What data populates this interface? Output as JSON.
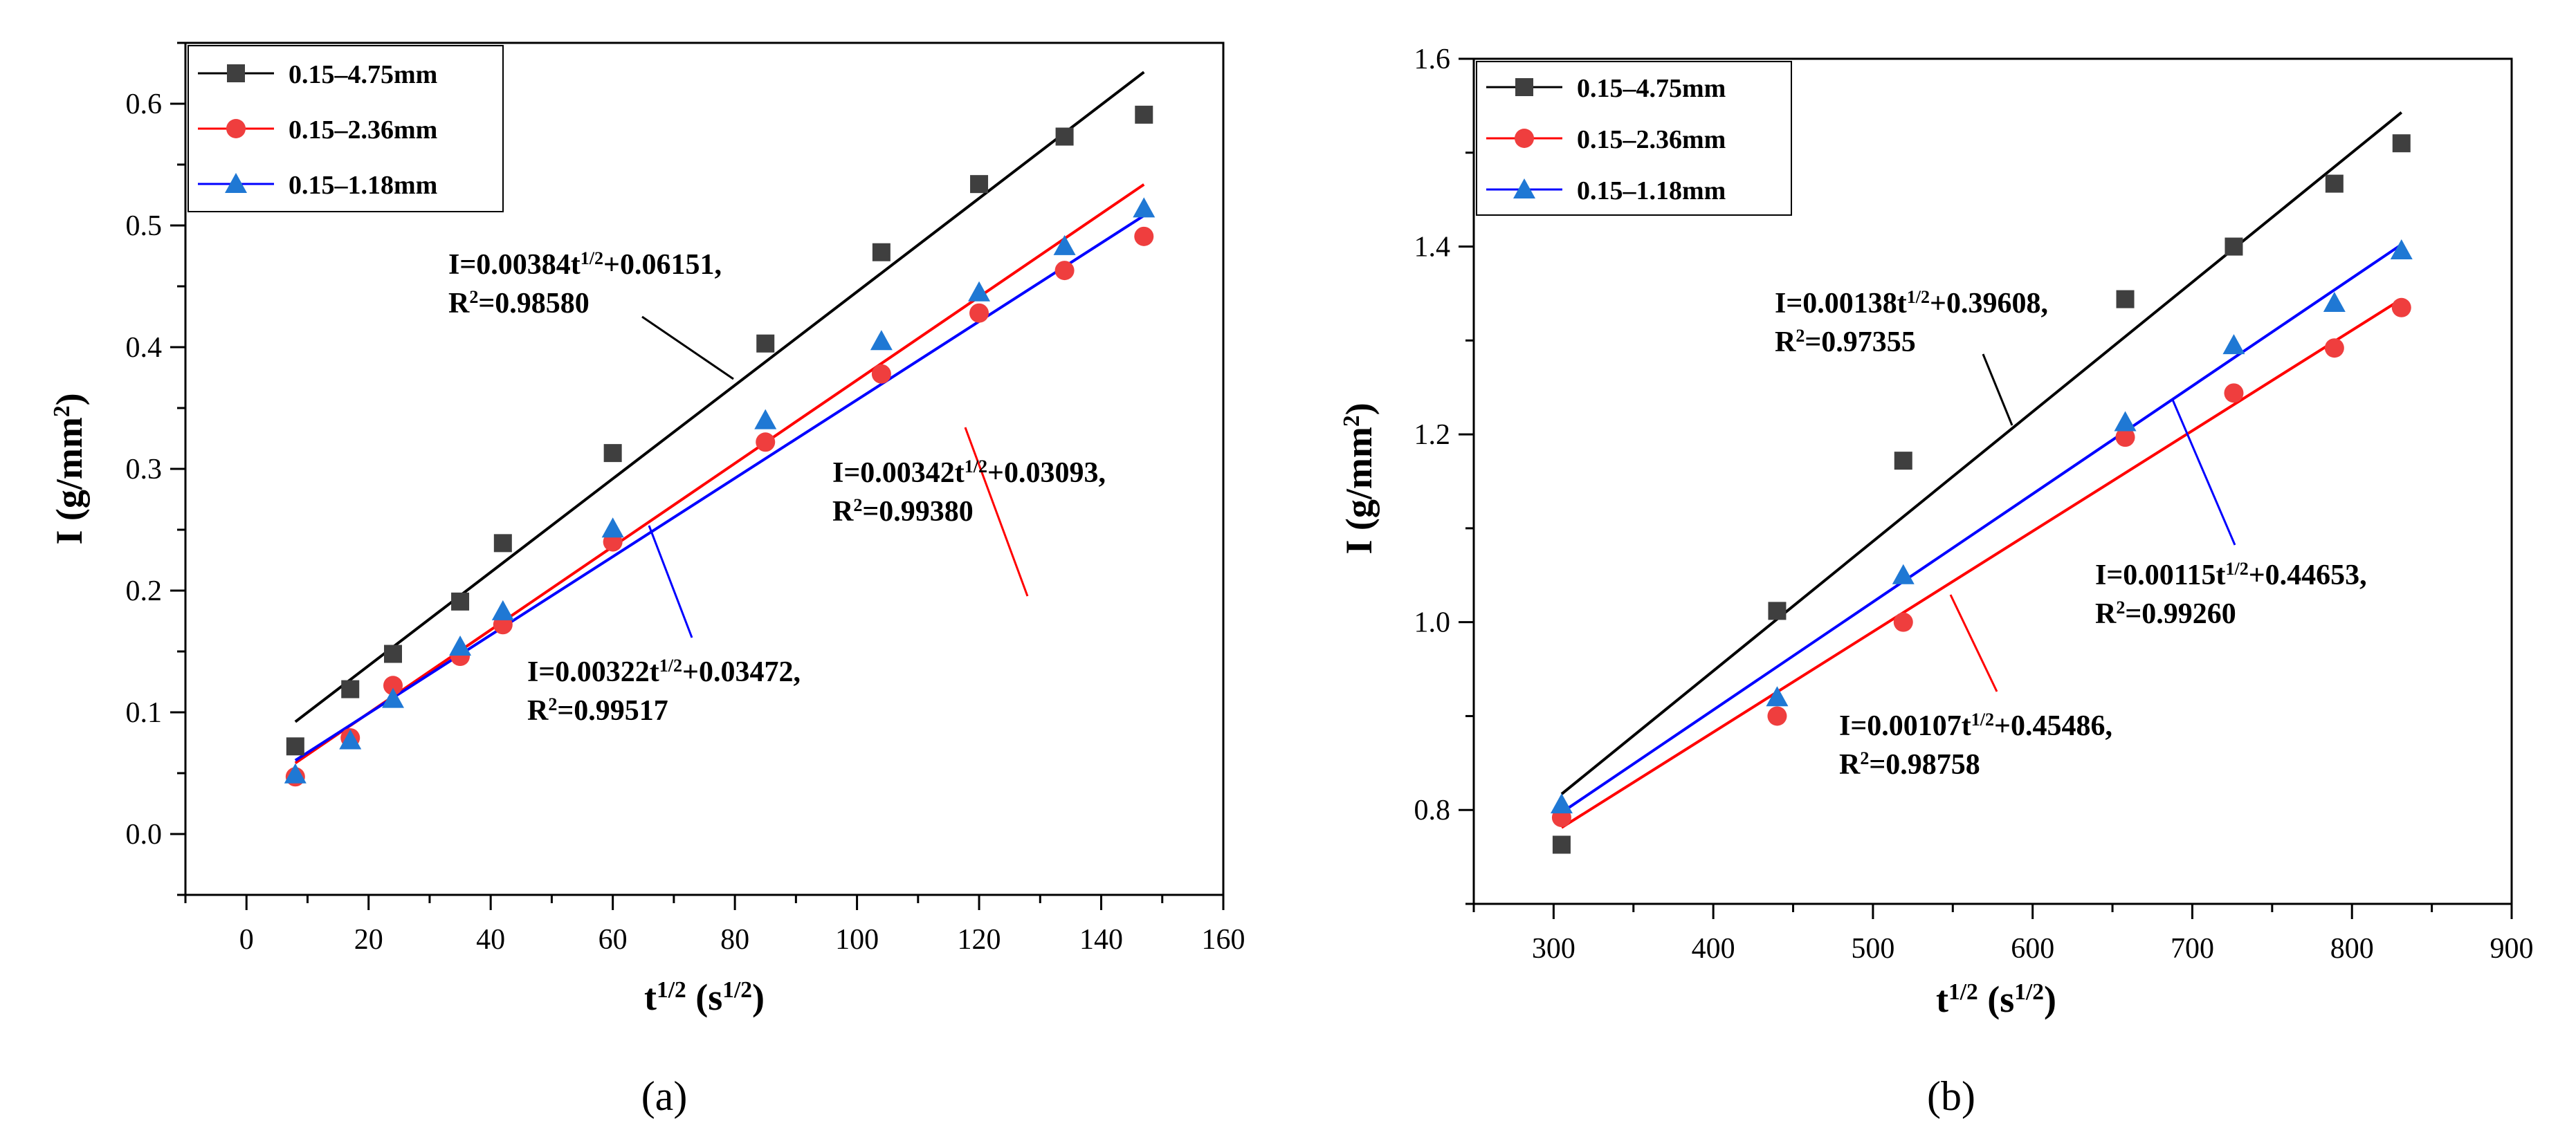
{
  "chart_data": [
    {
      "type": "scatter",
      "panel": "a",
      "caption": "(a)",
      "xlabel": "t1/2 (s1/2)",
      "ylabel": "I (g/mm2)",
      "xlim": [
        -10,
        160
      ],
      "ylim": [
        -0.05,
        0.65
      ],
      "xticks": [
        0,
        20,
        40,
        60,
        80,
        100,
        120,
        140,
        160
      ],
      "yticks": [
        0.0,
        0.1,
        0.2,
        0.3,
        0.4,
        0.5,
        0.6
      ],
      "ytick_decimals": 1,
      "legend_position": "top-left",
      "series": [
        {
          "name": "0.15–4.75mm",
          "color": "#000000",
          "point_color": "#3f3f3f",
          "marker": "square",
          "x": [
            8,
            17,
            24,
            35,
            42,
            60,
            85,
            104,
            120,
            134,
            147
          ],
          "y": [
            0.072,
            0.119,
            0.148,
            0.191,
            0.239,
            0.313,
            0.403,
            0.478,
            0.534,
            0.573,
            0.591
          ],
          "fit": {
            "slope": 0.00384,
            "intercept": 0.06151,
            "x_range": [
              8,
              147
            ]
          }
        },
        {
          "name": "0.15–2.36mm",
          "color": "#ff0000",
          "point_color": "#ef3e3e",
          "marker": "circle",
          "x": [
            8,
            17,
            24,
            35,
            42,
            60,
            85,
            104,
            120,
            134,
            147
          ],
          "y": [
            0.047,
            0.079,
            0.122,
            0.146,
            0.172,
            0.24,
            0.322,
            0.378,
            0.428,
            0.463,
            0.491
          ],
          "fit": {
            "slope": 0.00342,
            "intercept": 0.03093,
            "x_range": [
              8,
              147
            ]
          }
        },
        {
          "name": "0.15–1.18mm",
          "color": "#0000ff",
          "point_color": "#1f78d4",
          "marker": "triangle",
          "x": [
            8,
            17,
            24,
            35,
            42,
            60,
            85,
            104,
            120,
            134,
            147
          ],
          "y": [
            0.049,
            0.077,
            0.111,
            0.154,
            0.183,
            0.251,
            0.34,
            0.405,
            0.445,
            0.483,
            0.514
          ],
          "fit": {
            "slope": 0.00322,
            "intercept": 0.03472,
            "x_range": [
              8,
              147
            ]
          }
        }
      ],
      "annotations": [
        {
          "series": 0,
          "line1": {
            "pre": "I=0.00384t",
            "sup": "1/2",
            "post": "+0.06151,"
          },
          "line2": {
            "pre": "R",
            "sup": "2",
            "post": "=0.98580"
          }
        },
        {
          "series": 1,
          "line1": {
            "pre": "I=0.00342t",
            "sup": "1/2",
            "post": "+0.03093,"
          },
          "line2": {
            "pre": "R",
            "sup": "2",
            "post": "=0.99380"
          }
        },
        {
          "series": 2,
          "line1": {
            "pre": "I=0.00322t",
            "sup": "1/2",
            "post": "+0.03472,"
          },
          "line2": {
            "pre": "R",
            "sup": "2",
            "post": "=0.99517"
          }
        }
      ]
    },
    {
      "type": "scatter",
      "panel": "b",
      "caption": "(b)",
      "xlabel": "t1/2 (s1/2)",
      "ylabel": "I (g/mm2)",
      "xlim": [
        250,
        900
      ],
      "ylim": [
        0.7,
        1.6
      ],
      "xticks": [
        300,
        400,
        500,
        600,
        700,
        800,
        900
      ],
      "yticks": [
        0.8,
        1.0,
        1.2,
        1.4,
        1.6
      ],
      "ytick_decimals": 1,
      "legend_position": "top-left",
      "series": [
        {
          "name": "0.15–4.75mm",
          "color": "#000000",
          "point_color": "#3f3f3f",
          "marker": "square",
          "x": [
            305,
            440,
            519,
            658,
            726,
            789,
            831
          ],
          "y": [
            0.763,
            1.012,
            1.172,
            1.344,
            1.4,
            1.467,
            1.51
          ],
          "fit": {
            "slope": 0.00138,
            "intercept": 0.39608,
            "x_range": [
              305,
              831
            ]
          }
        },
        {
          "name": "0.15–2.36mm",
          "color": "#ff0000",
          "point_color": "#ef3e3e",
          "marker": "circle",
          "x": [
            305,
            440,
            519,
            658,
            726,
            789,
            831
          ],
          "y": [
            0.792,
            0.9,
            1.0,
            1.197,
            1.244,
            1.292,
            1.335
          ],
          "fit": {
            "slope": 0.00107,
            "intercept": 0.45486,
            "x_range": [
              305,
              831
            ]
          }
        },
        {
          "name": "0.15–1.18mm",
          "color": "#0000ff",
          "point_color": "#1f78d4",
          "marker": "triangle",
          "x": [
            305,
            440,
            519,
            658,
            726,
            789,
            831
          ],
          "y": [
            0.806,
            0.92,
            1.05,
            1.213,
            1.295,
            1.34,
            1.396
          ],
          "fit": {
            "slope": 0.00115,
            "intercept": 0.44653,
            "x_range": [
              305,
              831
            ]
          }
        }
      ],
      "annotations": [
        {
          "series": 0,
          "line1": {
            "pre": "I=0.00138t",
            "sup": "1/2",
            "post": "+0.39608,"
          },
          "line2": {
            "pre": "R",
            "sup": "2",
            "post": "=0.97355"
          }
        },
        {
          "series": 2,
          "line1": {
            "pre": "I=0.00115t",
            "sup": "1/2",
            "post": "+0.44653,"
          },
          "line2": {
            "pre": "R",
            "sup": "2",
            "post": "=0.99260"
          }
        },
        {
          "series": 1,
          "line1": {
            "pre": "I=0.00107t",
            "sup": "1/2",
            "post": "+0.45486,"
          },
          "line2": {
            "pre": "R",
            "sup": "2",
            "post": "=0.98758"
          }
        }
      ]
    }
  ]
}
